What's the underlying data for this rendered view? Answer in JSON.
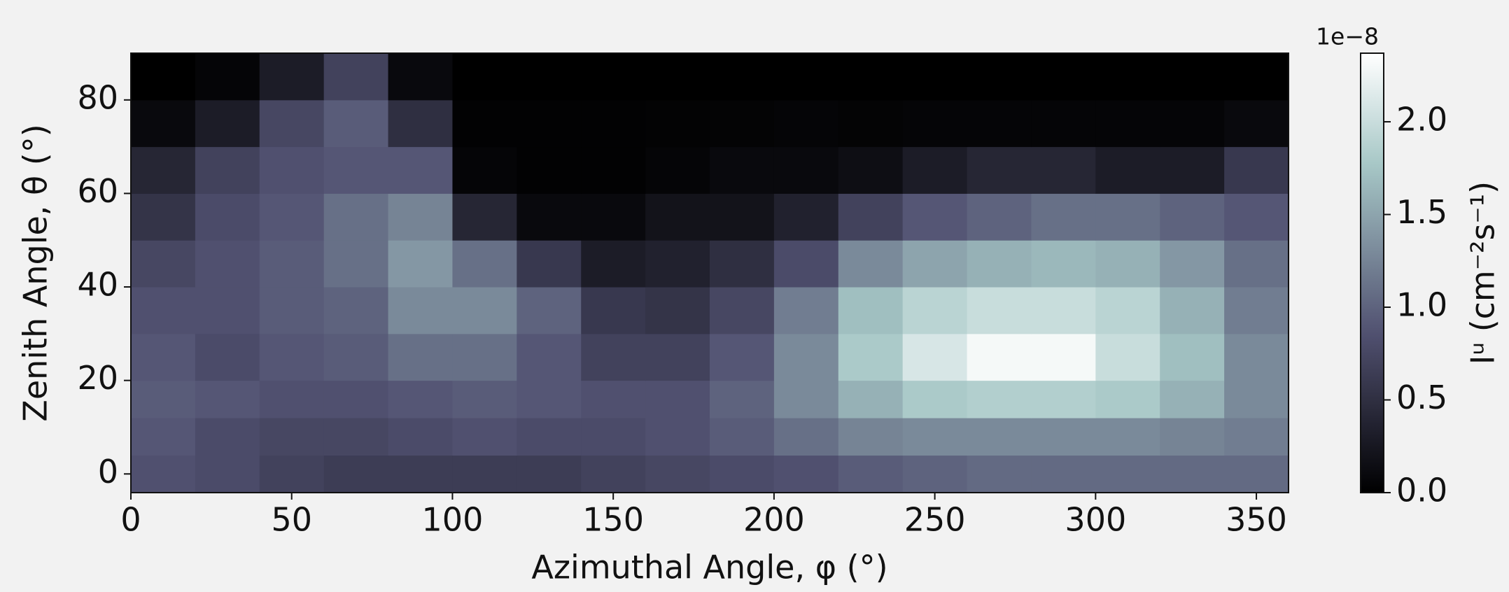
{
  "chart_data": {
    "type": "heatmap",
    "x_label": "Azimuthal Angle, φ (°)",
    "y_label": "Zenith Angle, θ (°)",
    "colorbar_label": "Iᵘ (cm⁻²s⁻¹)",
    "colorbar_offset_label": "1e−8",
    "colormap": "bone",
    "x_bins": [
      0,
      20,
      40,
      60,
      80,
      100,
      120,
      140,
      160,
      180,
      200,
      220,
      240,
      260,
      280,
      300,
      320,
      340,
      360
    ],
    "y_bins": [
      -4,
      4,
      12,
      20,
      30,
      40,
      50,
      60,
      70,
      80,
      90
    ],
    "values": [
      [
        0.85,
        0.8,
        0.7,
        0.65,
        0.65,
        0.65,
        0.65,
        0.7,
        0.75,
        0.8,
        0.85,
        0.95,
        1.0,
        1.05,
        1.05,
        1.05,
        1.05,
        1.05
      ],
      [
        0.9,
        0.8,
        0.75,
        0.75,
        0.8,
        0.85,
        0.8,
        0.8,
        0.85,
        0.95,
        1.1,
        1.25,
        1.3,
        1.3,
        1.3,
        1.3,
        1.25,
        1.2
      ],
      [
        0.95,
        0.9,
        0.85,
        0.85,
        0.9,
        0.95,
        0.9,
        0.85,
        0.85,
        1.0,
        1.3,
        1.6,
        1.8,
        1.85,
        1.85,
        1.8,
        1.6,
        1.3
      ],
      [
        0.9,
        0.8,
        0.9,
        0.95,
        1.1,
        1.1,
        0.9,
        0.7,
        0.7,
        0.9,
        1.3,
        1.8,
        2.1,
        2.3,
        2.3,
        2.0,
        1.7,
        1.3
      ],
      [
        0.85,
        0.85,
        0.95,
        1.0,
        1.3,
        1.3,
        1.0,
        0.6,
        0.55,
        0.75,
        1.2,
        1.7,
        1.9,
        2.0,
        2.0,
        1.9,
        1.6,
        1.2
      ],
      [
        0.75,
        0.85,
        0.95,
        1.1,
        1.4,
        1.1,
        0.6,
        0.3,
        0.35,
        0.5,
        0.8,
        1.3,
        1.5,
        1.6,
        1.65,
        1.6,
        1.4,
        1.1
      ],
      [
        0.55,
        0.8,
        0.9,
        1.1,
        1.25,
        0.4,
        0.1,
        0.1,
        0.2,
        0.2,
        0.35,
        0.7,
        0.9,
        1.0,
        1.1,
        1.1,
        1.0,
        0.9
      ],
      [
        0.4,
        0.7,
        0.85,
        0.9,
        0.9,
        0.05,
        0.02,
        0.02,
        0.05,
        0.1,
        0.1,
        0.15,
        0.3,
        0.4,
        0.4,
        0.3,
        0.3,
        0.6
      ],
      [
        0.1,
        0.3,
        0.75,
        0.95,
        0.5,
        0.02,
        0.02,
        0.02,
        0.03,
        0.04,
        0.05,
        0.04,
        0.05,
        0.05,
        0.05,
        0.05,
        0.05,
        0.1
      ],
      [
        0.0,
        0.05,
        0.3,
        0.7,
        0.1,
        0.0,
        0.0,
        0.0,
        0.0,
        0.0,
        0.0,
        0.0,
        0.0,
        0.0,
        0.0,
        0.0,
        0.0,
        0.0
      ]
    ],
    "xlim": [
      0,
      360
    ],
    "xticks": [
      0,
      50,
      100,
      150,
      200,
      250,
      300,
      350
    ],
    "ylim": [
      -4,
      90
    ],
    "yticks": [
      0,
      20,
      40,
      60,
      80
    ],
    "clim": [
      0,
      2.37
    ],
    "cticks": [
      {
        "value": 0,
        "label": "0.0"
      },
      0.5,
      {
        "value": 1,
        "label": "1.0"
      },
      1.5,
      {
        "value": 2,
        "label": "2.0"
      }
    ]
  }
}
